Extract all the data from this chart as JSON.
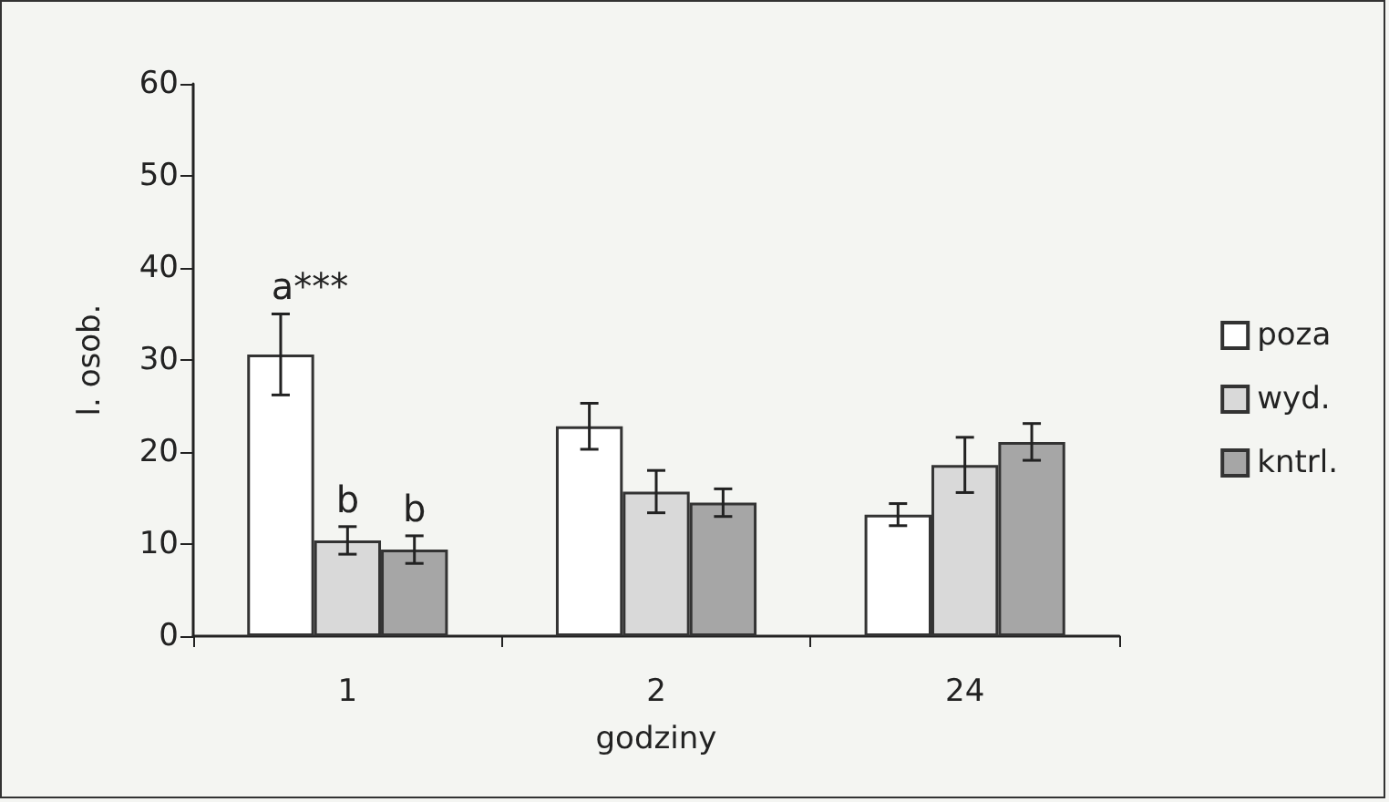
{
  "chart_data": {
    "type": "bar",
    "xlabel": "godziny",
    "ylabel": "l. osob.",
    "categories": [
      "1",
      "2",
      "24"
    ],
    "series": [
      {
        "name": "poza",
        "color": "#ffffff",
        "values": [
          30.6,
          22.8,
          13.2
        ],
        "errors": [
          4.4,
          2.5,
          1.2
        ]
      },
      {
        "name": "wyd.",
        "color": "#d9d9d9",
        "values": [
          10.4,
          15.7,
          18.6
        ],
        "errors": [
          1.5,
          2.3,
          3
        ]
      },
      {
        "name": "kntrl.",
        "color": "#a6a6a6",
        "values": [
          9.4,
          14.5,
          21.1
        ],
        "errors": [
          1.5,
          1.5,
          2
        ]
      }
    ],
    "ylim": [
      0,
      60
    ],
    "yticks": [
      0,
      10,
      20,
      30,
      40,
      50,
      60
    ],
    "grid": false,
    "legend": "right",
    "annotations": [
      "a***",
      "b",
      "b"
    ]
  }
}
